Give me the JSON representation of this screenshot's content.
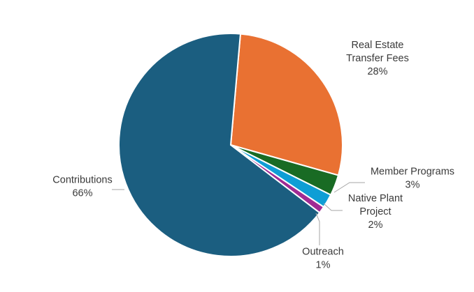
{
  "chart_data": {
    "type": "pie",
    "title": "",
    "legend": "none",
    "slices": [
      {
        "name": "Real Estate Transfer Fees",
        "label_lines": [
          "Real Estate",
          "Transfer Fees"
        ],
        "value": 28,
        "value_label": "28%",
        "color": "#E97132"
      },
      {
        "name": "Member Programs",
        "label_lines": [
          "Member Programs"
        ],
        "value": 3,
        "value_label": "3%",
        "color": "#196B24"
      },
      {
        "name": "Native Plant Project",
        "label_lines": [
          "Native Plant",
          "Project"
        ],
        "value": 2,
        "value_label": "2%",
        "color": "#0F9ED5"
      },
      {
        "name": "Outreach",
        "label_lines": [
          "Outreach"
        ],
        "value": 1,
        "value_label": "1%",
        "color": "#A02B93"
      },
      {
        "name": "Contributions",
        "label_lines": [
          "Contributions"
        ],
        "value": 66,
        "value_label": "66%",
        "color": "#1B5E80"
      }
    ]
  }
}
